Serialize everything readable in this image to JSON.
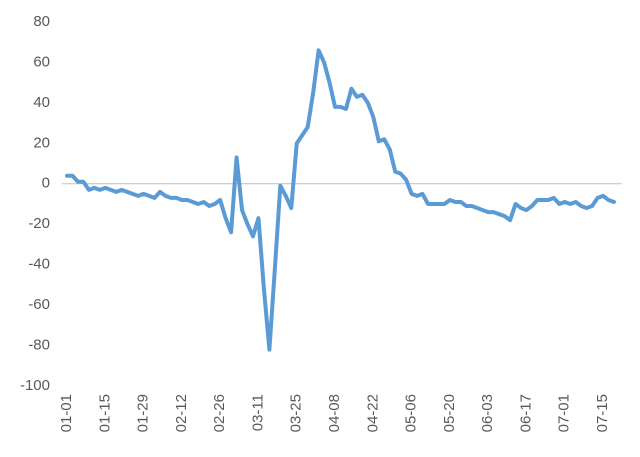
{
  "chart_data": {
    "type": "line",
    "categories": [
      "01-01",
      null,
      null,
      null,
      null,
      null,
      null,
      "01-15",
      null,
      null,
      null,
      null,
      null,
      null,
      "01-29",
      null,
      null,
      null,
      null,
      null,
      null,
      "02-12",
      null,
      null,
      null,
      null,
      null,
      null,
      "02-26",
      null,
      null,
      null,
      null,
      null,
      null,
      "03-11",
      null,
      null,
      null,
      null,
      null,
      null,
      "03-25",
      null,
      null,
      null,
      null,
      null,
      null,
      "04-08",
      null,
      null,
      null,
      null,
      null,
      null,
      "04-22",
      null,
      null,
      null,
      null,
      null,
      null,
      "05-06",
      null,
      null,
      null,
      null,
      null,
      null,
      "05-20",
      null,
      null,
      null,
      null,
      null,
      null,
      "06-03",
      null,
      null,
      null,
      null,
      null,
      null,
      "06-17",
      null,
      null,
      null,
      null,
      null,
      null,
      "07-01",
      null,
      null,
      null,
      null,
      null,
      null,
      "07-15",
      null,
      null
    ],
    "values": [
      4,
      4,
      1,
      1,
      -3,
      -2,
      -3,
      -2,
      -3,
      -4,
      -3,
      -4,
      -5,
      -6,
      -5,
      -6,
      -7,
      -4,
      -6,
      -7,
      -7,
      -8,
      -8,
      -9,
      -10,
      -9,
      -11,
      -10,
      -8,
      -17,
      -24,
      13,
      -13,
      -20,
      -26,
      -17,
      -52,
      -82,
      -42,
      -1,
      -6,
      -12,
      20,
      24,
      28,
      45,
      66,
      60,
      50,
      38,
      38,
      37,
      47,
      43,
      44,
      40,
      33,
      21,
      22,
      17,
      6,
      5,
      2,
      -5,
      -6,
      -5,
      -10,
      -10,
      -10,
      -10,
      -8,
      -9,
      -9,
      -11,
      -11,
      -12,
      -13,
      -14,
      -14,
      -15,
      -16,
      -18,
      -10,
      -12,
      -13,
      -11,
      -8,
      -8,
      -8,
      -7,
      -10,
      -9,
      -10,
      -9,
      -11,
      -12,
      -11,
      -7,
      -6,
      -8,
      -9
    ],
    "color": "#5b9bd5",
    "ylim": [
      -100,
      80
    ],
    "yticks": [
      -100,
      -80,
      -60,
      -40,
      -20,
      0,
      20,
      40,
      60,
      80
    ],
    "grid": false
  }
}
